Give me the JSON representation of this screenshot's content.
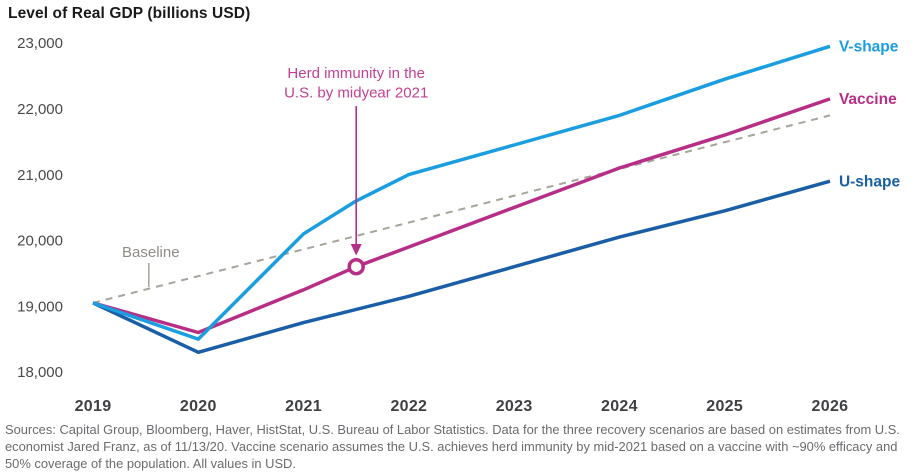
{
  "title": "Level of Real GDP (billions USD)",
  "footer": "Sources: Capital Group, Bloomberg, Haver, HistStat, U.S. Bureau of Labor Statistics. Data for the three recovery scenarios are based on estimates from U.S. economist Jared Franz, as of 11/13/20. Vaccine scenario assumes the U.S. achieves herd immunity by mid-2021 based on a vaccine with ~90% efficacy and 50% coverage of the population. All values in USD.",
  "colors": {
    "v_shape": "#1a9ee0",
    "vaccine": "#b72e86",
    "u_shape": "#1a5fa6",
    "baseline": "#a8a49b",
    "annotation_text": "#c33f92",
    "baseline_label": "#8f8c85",
    "title_text": "#1a1a1a",
    "axis_text": "#4a4a4a",
    "year_text": "#3f4043",
    "footer_text": "#6a6b6e",
    "marker_fill": "#ffffff"
  },
  "chart_data": {
    "type": "line",
    "title": "Level of Real GDP (billions USD)",
    "ylabel": "Level of Real GDP (billions USD)",
    "xlabel": "",
    "grid": false,
    "x_axis": {
      "ticks": [
        2019,
        2020,
        2021,
        2022,
        2023,
        2024,
        2025,
        2026
      ]
    },
    "y_axis": {
      "ticks": [
        23000,
        22000,
        21000,
        20000,
        19000,
        18000
      ],
      "tick_labels": [
        "23,000",
        "22,000",
        "21,000",
        "20,000",
        "19,000",
        "18,000"
      ],
      "range": [
        18000,
        23000
      ],
      "unit": "billions USD"
    },
    "legend_position": "line-end-labels",
    "series": [
      {
        "name": "V-shape",
        "color_key": "v_shape",
        "style": "solid",
        "width": 3.5,
        "end_label": true,
        "points": [
          [
            2019,
            19050
          ],
          [
            2020,
            18500
          ],
          [
            2020.5,
            19300
          ],
          [
            2021,
            20100
          ],
          [
            2021.5,
            20600
          ],
          [
            2022,
            21000
          ],
          [
            2023,
            21450
          ],
          [
            2024,
            21900
          ],
          [
            2025,
            22450
          ],
          [
            2026,
            22950
          ]
        ]
      },
      {
        "name": "Vaccine",
        "color_key": "vaccine",
        "style": "solid",
        "width": 3.5,
        "end_label": true,
        "points": [
          [
            2019,
            19050
          ],
          [
            2020,
            18600
          ],
          [
            2021,
            19250
          ],
          [
            2021.5,
            19600
          ],
          [
            2022,
            19900
          ],
          [
            2023,
            20500
          ],
          [
            2024,
            21100
          ],
          [
            2025,
            21600
          ],
          [
            2026,
            22150
          ]
        ]
      },
      {
        "name": "U-shape",
        "color_key": "u_shape",
        "style": "solid",
        "width": 3.5,
        "end_label": true,
        "points": [
          [
            2019,
            19050
          ],
          [
            2020,
            18300
          ],
          [
            2021,
            18750
          ],
          [
            2022,
            19150
          ],
          [
            2023,
            19600
          ],
          [
            2024,
            20050
          ],
          [
            2025,
            20450
          ],
          [
            2026,
            20900
          ]
        ]
      },
      {
        "name": "Baseline",
        "color_key": "baseline",
        "style": "dashed",
        "width": 2,
        "end_label": false,
        "points": [
          [
            2019,
            19050
          ],
          [
            2026,
            21900
          ]
        ]
      }
    ],
    "annotations": {
      "herd_immunity": {
        "text_lines": [
          "Herd immunity in the",
          "U.S. by midyear 2021"
        ],
        "target_x": 2021.5,
        "target_y": 19600,
        "marker": "open-circle",
        "series": "Vaccine"
      },
      "baseline_label": {
        "text": "Baseline",
        "leader_to_x": 2019.53
      }
    }
  }
}
